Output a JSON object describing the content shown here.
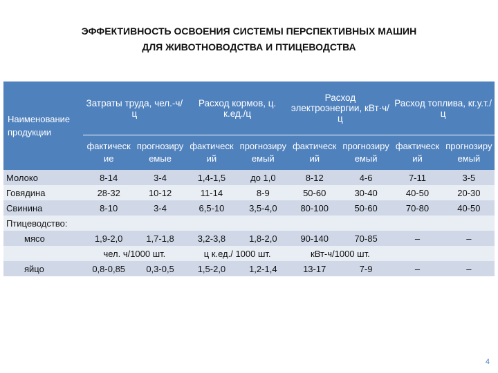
{
  "title": [
    "ЭФФЕКТИВНОСТЬ ОСВОЕНИЯ СИСТЕМЫ ПЕРСПЕКТИВНЫХ МАШИН",
    "ДЛЯ ЖИВОТНОВОДСТВА И ПТИЦЕВОДСТВА"
  ],
  "table": {
    "name_header": "Наименование продукции",
    "groups": [
      "Затраты труда, чел.-ч/ц",
      "Расход кормов, ц. к.ед./ц",
      "Расход электроэнергии, кВт·ч/ц",
      "Расход топлива, кг.у.т./ц"
    ],
    "subheaders": [
      "фактические",
      "прогнозируемые",
      "фактический",
      "прогнозируемый",
      "фактический",
      "прогнозируемый",
      "фактический",
      "прогнозируемый"
    ],
    "rows": [
      {
        "name": "Молоко",
        "values": [
          "8-14",
          "3-4",
          "1,4-1,5",
          "до 1,0",
          "8-12",
          "4-6",
          "7-11",
          "3-5"
        ]
      },
      {
        "name": "Говядина",
        "values": [
          "28-32",
          "10-12",
          "11-14",
          "8-9",
          "50-60",
          "30-40",
          "40-50",
          "20-30"
        ]
      },
      {
        "name": "Свинина",
        "values": [
          "8-10",
          "3-4",
          "6,5-10",
          "3,5-4,0",
          "80-100",
          "50-60",
          "70-80",
          "40-50"
        ]
      },
      {
        "name": "Птицеводство:"
      },
      {
        "name": "мясо",
        "values": [
          "1,9-2,0",
          "1,7-1,8",
          "3,2-3,8",
          "1,8-2,0",
          "90-140",
          "70-85",
          "–",
          "–"
        ]
      },
      {
        "units": [
          "чел. ч/1000 шт.",
          "ц к.ед./ 1000 шт.",
          "кВт-ч/1000 шт."
        ]
      },
      {
        "name": "яйцо",
        "values": [
          "0,8-0,85",
          "0,3-0,5",
          "1,5-2,0",
          "1,2-1,4",
          "13-17",
          "7-9",
          "–",
          "–"
        ]
      }
    ]
  },
  "page_number": "4"
}
